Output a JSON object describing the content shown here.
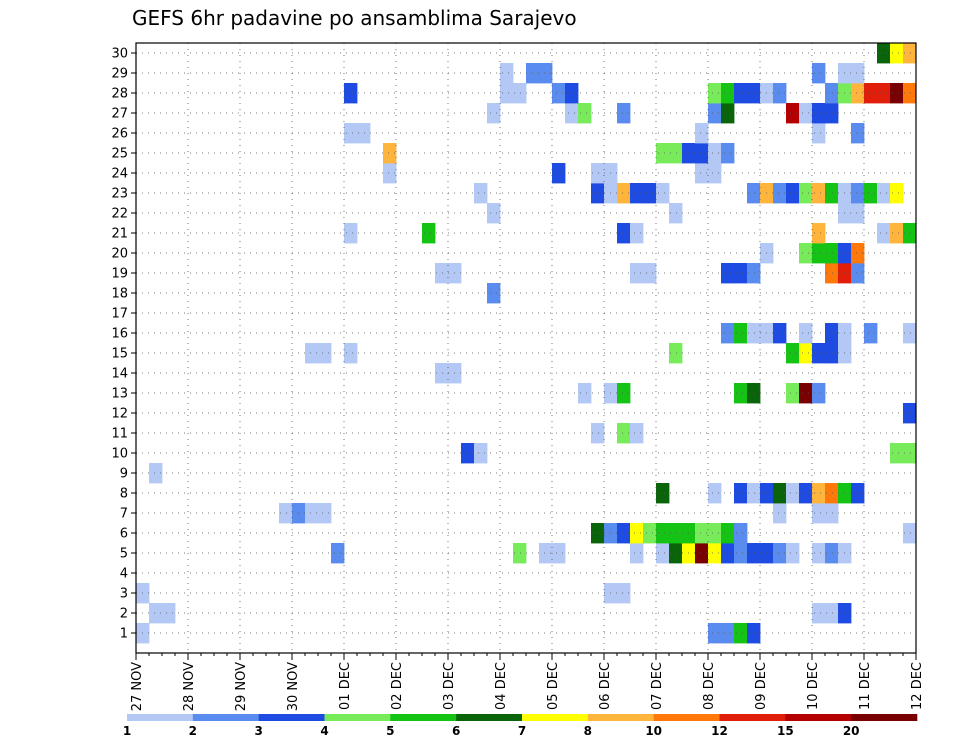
{
  "chart_data": {
    "type": "heatmap",
    "title": "GEFS 6hr padavine po ansamblima Sarajevo",
    "x_labels": [
      "27 NOV",
      "28 NOV",
      "29 NOV",
      "30 NOV",
      "01 DEC",
      "02 DEC",
      "03 DEC",
      "04 DEC",
      "05 DEC",
      "06 DEC",
      "07 DEC",
      "08 DEC",
      "09 DEC",
      "10 DEC",
      "11 DEC",
      "12 DEC"
    ],
    "y_range": [
      1,
      30
    ],
    "y_labels": [
      "1",
      "2",
      "3",
      "4",
      "5",
      "6",
      "7",
      "8",
      "9",
      "10",
      "11",
      "12",
      "13",
      "14",
      "15",
      "16",
      "17",
      "18",
      "19",
      "20",
      "21",
      "22",
      "23",
      "24",
      "25",
      "26",
      "27",
      "28",
      "29",
      "30"
    ],
    "steps_per_day": 4,
    "grid": true,
    "legend": {
      "placement": "bottom",
      "thresholds": [
        1,
        2,
        3,
        4,
        5,
        6,
        7,
        8,
        10,
        12,
        15,
        20
      ],
      "colors": [
        "#b4c8f5",
        "#5a8cf0",
        "#1e4be1",
        "#78eb5a",
        "#14c314",
        "#0a640a",
        "#ffff00",
        "#ffb43c",
        "#ff780a",
        "#e11e0a",
        "#b40000",
        "#780000"
      ]
    },
    "cells": [
      {
        "m": 1,
        "t": 1,
        "c": 0
      },
      {
        "m": 1,
        "t": 45,
        "c": 1
      },
      {
        "m": 1,
        "t": 46,
        "c": 1
      },
      {
        "m": 1,
        "t": 47,
        "c": 4
      },
      {
        "m": 1,
        "t": 48,
        "c": 2
      },
      {
        "m": 2,
        "t": 2,
        "c": 0
      },
      {
        "m": 2,
        "t": 3,
        "c": 0
      },
      {
        "m": 2,
        "t": 53,
        "c": 0
      },
      {
        "m": 2,
        "t": 54,
        "c": 0
      },
      {
        "m": 2,
        "t": 55,
        "c": 2
      },
      {
        "m": 3,
        "t": 1,
        "c": 0
      },
      {
        "m": 3,
        "t": 37,
        "c": 0
      },
      {
        "m": 3,
        "t": 38,
        "c": 0
      },
      {
        "m": 5,
        "t": 16,
        "c": 1
      },
      {
        "m": 5,
        "t": 30,
        "c": 3
      },
      {
        "m": 5,
        "t": 32,
        "c": 0
      },
      {
        "m": 5,
        "t": 33,
        "c": 0
      },
      {
        "m": 5,
        "t": 39,
        "c": 0
      },
      {
        "m": 5,
        "t": 41,
        "c": 0
      },
      {
        "m": 5,
        "t": 42,
        "c": 5
      },
      {
        "m": 5,
        "t": 43,
        "c": 6
      },
      {
        "m": 5,
        "t": 44,
        "c": 11
      },
      {
        "m": 5,
        "t": 45,
        "c": 6
      },
      {
        "m": 5,
        "t": 46,
        "c": 2
      },
      {
        "m": 5,
        "t": 47,
        "c": 1
      },
      {
        "m": 5,
        "t": 48,
        "c": 2
      },
      {
        "m": 5,
        "t": 49,
        "c": 2
      },
      {
        "m": 5,
        "t": 50,
        "c": 1
      },
      {
        "m": 5,
        "t": 51,
        "c": 0
      },
      {
        "m": 5,
        "t": 53,
        "c": 0
      },
      {
        "m": 5,
        "t": 54,
        "c": 1
      },
      {
        "m": 5,
        "t": 55,
        "c": 0
      },
      {
        "m": 6,
        "t": 36,
        "c": 5
      },
      {
        "m": 6,
        "t": 37,
        "c": 1
      },
      {
        "m": 6,
        "t": 38,
        "c": 2
      },
      {
        "m": 6,
        "t": 39,
        "c": 6
      },
      {
        "m": 6,
        "t": 40,
        "c": 3
      },
      {
        "m": 6,
        "t": 41,
        "c": 4
      },
      {
        "m": 6,
        "t": 42,
        "c": 4
      },
      {
        "m": 6,
        "t": 43,
        "c": 4
      },
      {
        "m": 6,
        "t": 44,
        "c": 3
      },
      {
        "m": 6,
        "t": 45,
        "c": 3
      },
      {
        "m": 6,
        "t": 46,
        "c": 4
      },
      {
        "m": 6,
        "t": 47,
        "c": 1
      },
      {
        "m": 6,
        "t": 60,
        "c": 0
      },
      {
        "m": 7,
        "t": 12,
        "c": 0
      },
      {
        "m": 7,
        "t": 13,
        "c": 1
      },
      {
        "m": 7,
        "t": 14,
        "c": 0
      },
      {
        "m": 7,
        "t": 15,
        "c": 0
      },
      {
        "m": 7,
        "t": 50,
        "c": 0
      },
      {
        "m": 7,
        "t": 53,
        "c": 0
      },
      {
        "m": 7,
        "t": 54,
        "c": 0
      },
      {
        "m": 8,
        "t": 41,
        "c": 5
      },
      {
        "m": 8,
        "t": 45,
        "c": 0
      },
      {
        "m": 8,
        "t": 47,
        "c": 2
      },
      {
        "m": 8,
        "t": 48,
        "c": 0
      },
      {
        "m": 8,
        "t": 49,
        "c": 2
      },
      {
        "m": 8,
        "t": 50,
        "c": 5
      },
      {
        "m": 8,
        "t": 51,
        "c": 0
      },
      {
        "m": 8,
        "t": 52,
        "c": 2
      },
      {
        "m": 8,
        "t": 53,
        "c": 7
      },
      {
        "m": 8,
        "t": 54,
        "c": 8
      },
      {
        "m": 8,
        "t": 55,
        "c": 4
      },
      {
        "m": 8,
        "t": 56,
        "c": 2
      },
      {
        "m": 9,
        "t": 2,
        "c": 0
      },
      {
        "m": 10,
        "t": 26,
        "c": 2
      },
      {
        "m": 10,
        "t": 27,
        "c": 0
      },
      {
        "m": 10,
        "t": 59,
        "c": 3
      },
      {
        "m": 10,
        "t": 60,
        "c": 3
      },
      {
        "m": 11,
        "t": 36,
        "c": 0
      },
      {
        "m": 11,
        "t": 38,
        "c": 3
      },
      {
        "m": 11,
        "t": 39,
        "c": 0
      },
      {
        "m": 12,
        "t": 60,
        "c": 2
      },
      {
        "m": 13,
        "t": 35,
        "c": 0
      },
      {
        "m": 13,
        "t": 37,
        "c": 0
      },
      {
        "m": 13,
        "t": 38,
        "c": 4
      },
      {
        "m": 13,
        "t": 47,
        "c": 4
      },
      {
        "m": 13,
        "t": 48,
        "c": 5
      },
      {
        "m": 13,
        "t": 51,
        "c": 3
      },
      {
        "m": 13,
        "t": 52,
        "c": 11
      },
      {
        "m": 13,
        "t": 53,
        "c": 1
      },
      {
        "m": 14,
        "t": 24,
        "c": 0
      },
      {
        "m": 14,
        "t": 25,
        "c": 0
      },
      {
        "m": 15,
        "t": 14,
        "c": 0
      },
      {
        "m": 15,
        "t": 15,
        "c": 0
      },
      {
        "m": 15,
        "t": 17,
        "c": 0
      },
      {
        "m": 15,
        "t": 42,
        "c": 3
      },
      {
        "m": 15,
        "t": 51,
        "c": 4
      },
      {
        "m": 15,
        "t": 52,
        "c": 6
      },
      {
        "m": 15,
        "t": 53,
        "c": 2
      },
      {
        "m": 15,
        "t": 54,
        "c": 2
      },
      {
        "m": 15,
        "t": 55,
        "c": 0
      },
      {
        "m": 16,
        "t": 46,
        "c": 1
      },
      {
        "m": 16,
        "t": 47,
        "c": 4
      },
      {
        "m": 16,
        "t": 48,
        "c": 0
      },
      {
        "m": 16,
        "t": 49,
        "c": 0
      },
      {
        "m": 16,
        "t": 50,
        "c": 2
      },
      {
        "m": 16,
        "t": 52,
        "c": 0
      },
      {
        "m": 16,
        "t": 54,
        "c": 2
      },
      {
        "m": 16,
        "t": 55,
        "c": 0
      },
      {
        "m": 16,
        "t": 57,
        "c": 1
      },
      {
        "m": 16,
        "t": 60,
        "c": 0
      },
      {
        "m": 18,
        "t": 28,
        "c": 1
      },
      {
        "m": 19,
        "t": 24,
        "c": 0
      },
      {
        "m": 19,
        "t": 25,
        "c": 0
      },
      {
        "m": 19,
        "t": 39,
        "c": 0
      },
      {
        "m": 19,
        "t": 40,
        "c": 0
      },
      {
        "m": 19,
        "t": 46,
        "c": 2
      },
      {
        "m": 19,
        "t": 47,
        "c": 2
      },
      {
        "m": 19,
        "t": 48,
        "c": 1
      },
      {
        "m": 19,
        "t": 54,
        "c": 8
      },
      {
        "m": 19,
        "t": 55,
        "c": 9
      },
      {
        "m": 19,
        "t": 56,
        "c": 1
      },
      {
        "m": 20,
        "t": 49,
        "c": 0
      },
      {
        "m": 20,
        "t": 52,
        "c": 3
      },
      {
        "m": 20,
        "t": 53,
        "c": 4
      },
      {
        "m": 20,
        "t": 54,
        "c": 4
      },
      {
        "m": 20,
        "t": 55,
        "c": 2
      },
      {
        "m": 20,
        "t": 56,
        "c": 8
      },
      {
        "m": 21,
        "t": 17,
        "c": 0
      },
      {
        "m": 21,
        "t": 23,
        "c": 4
      },
      {
        "m": 21,
        "t": 38,
        "c": 2
      },
      {
        "m": 21,
        "t": 39,
        "c": 0
      },
      {
        "m": 21,
        "t": 53,
        "c": 7
      },
      {
        "m": 21,
        "t": 58,
        "c": 0
      },
      {
        "m": 21,
        "t": 59,
        "c": 7
      },
      {
        "m": 21,
        "t": 60,
        "c": 4
      },
      {
        "m": 22,
        "t": 28,
        "c": 0
      },
      {
        "m": 22,
        "t": 42,
        "c": 0
      },
      {
        "m": 22,
        "t": 55,
        "c": 0
      },
      {
        "m": 22,
        "t": 56,
        "c": 0
      },
      {
        "m": 23,
        "t": 27,
        "c": 0
      },
      {
        "m": 23,
        "t": 36,
        "c": 2
      },
      {
        "m": 23,
        "t": 37,
        "c": 0
      },
      {
        "m": 23,
        "t": 38,
        "c": 7
      },
      {
        "m": 23,
        "t": 39,
        "c": 2
      },
      {
        "m": 23,
        "t": 40,
        "c": 2
      },
      {
        "m": 23,
        "t": 41,
        "c": 0
      },
      {
        "m": 23,
        "t": 48,
        "c": 1
      },
      {
        "m": 23,
        "t": 49,
        "c": 7
      },
      {
        "m": 23,
        "t": 50,
        "c": 1
      },
      {
        "m": 23,
        "t": 51,
        "c": 2
      },
      {
        "m": 23,
        "t": 52,
        "c": 3
      },
      {
        "m": 23,
        "t": 53,
        "c": 7
      },
      {
        "m": 23,
        "t": 54,
        "c": 4
      },
      {
        "m": 23,
        "t": 55,
        "c": 0
      },
      {
        "m": 23,
        "t": 56,
        "c": 1
      },
      {
        "m": 23,
        "t": 57,
        "c": 4
      },
      {
        "m": 23,
        "t": 58,
        "c": 0
      },
      {
        "m": 23,
        "t": 59,
        "c": 6
      },
      {
        "m": 24,
        "t": 20,
        "c": 0
      },
      {
        "m": 24,
        "t": 33,
        "c": 2
      },
      {
        "m": 24,
        "t": 36,
        "c": 0
      },
      {
        "m": 24,
        "t": 37,
        "c": 0
      },
      {
        "m": 24,
        "t": 44,
        "c": 0
      },
      {
        "m": 24,
        "t": 45,
        "c": 0
      },
      {
        "m": 25,
        "t": 20,
        "c": 7
      },
      {
        "m": 25,
        "t": 41,
        "c": 3
      },
      {
        "m": 25,
        "t": 42,
        "c": 3
      },
      {
        "m": 25,
        "t": 43,
        "c": 2
      },
      {
        "m": 25,
        "t": 44,
        "c": 2
      },
      {
        "m": 25,
        "t": 45,
        "c": 0
      },
      {
        "m": 25,
        "t": 46,
        "c": 1
      },
      {
        "m": 26,
        "t": 17,
        "c": 0
      },
      {
        "m": 26,
        "t": 18,
        "c": 0
      },
      {
        "m": 26,
        "t": 44,
        "c": 0
      },
      {
        "m": 26,
        "t": 53,
        "c": 0
      },
      {
        "m": 26,
        "t": 56,
        "c": 1
      },
      {
        "m": 27,
        "t": 28,
        "c": 0
      },
      {
        "m": 27,
        "t": 34,
        "c": 0
      },
      {
        "m": 27,
        "t": 35,
        "c": 3
      },
      {
        "m": 27,
        "t": 38,
        "c": 1
      },
      {
        "m": 27,
        "t": 45,
        "c": 1
      },
      {
        "m": 27,
        "t": 46,
        "c": 5
      },
      {
        "m": 27,
        "t": 51,
        "c": 10
      },
      {
        "m": 27,
        "t": 52,
        "c": 0
      },
      {
        "m": 27,
        "t": 53,
        "c": 2
      },
      {
        "m": 27,
        "t": 54,
        "c": 2
      },
      {
        "m": 28,
        "t": 17,
        "c": 2
      },
      {
        "m": 28,
        "t": 29,
        "c": 0
      },
      {
        "m": 28,
        "t": 30,
        "c": 0
      },
      {
        "m": 28,
        "t": 33,
        "c": 1
      },
      {
        "m": 28,
        "t": 34,
        "c": 2
      },
      {
        "m": 28,
        "t": 45,
        "c": 3
      },
      {
        "m": 28,
        "t": 46,
        "c": 4
      },
      {
        "m": 28,
        "t": 47,
        "c": 2
      },
      {
        "m": 28,
        "t": 48,
        "c": 2
      },
      {
        "m": 28,
        "t": 49,
        "c": 0
      },
      {
        "m": 28,
        "t": 50,
        "c": 1
      },
      {
        "m": 28,
        "t": 54,
        "c": 1
      },
      {
        "m": 28,
        "t": 55,
        "c": 3
      },
      {
        "m": 28,
        "t": 56,
        "c": 7
      },
      {
        "m": 28,
        "t": 57,
        "c": 9
      },
      {
        "m": 28,
        "t": 58,
        "c": 9
      },
      {
        "m": 28,
        "t": 59,
        "c": 11
      },
      {
        "m": 28,
        "t": 60,
        "c": 8
      },
      {
        "m": 29,
        "t": 29,
        "c": 0
      },
      {
        "m": 29,
        "t": 31,
        "c": 1
      },
      {
        "m": 29,
        "t": 32,
        "c": 1
      },
      {
        "m": 29,
        "t": 53,
        "c": 1
      },
      {
        "m": 29,
        "t": 55,
        "c": 0
      },
      {
        "m": 29,
        "t": 56,
        "c": 0
      },
      {
        "m": 30,
        "t": 58,
        "c": 5
      },
      {
        "m": 30,
        "t": 59,
        "c": 6
      },
      {
        "m": 30,
        "t": 60,
        "c": 7
      }
    ]
  }
}
